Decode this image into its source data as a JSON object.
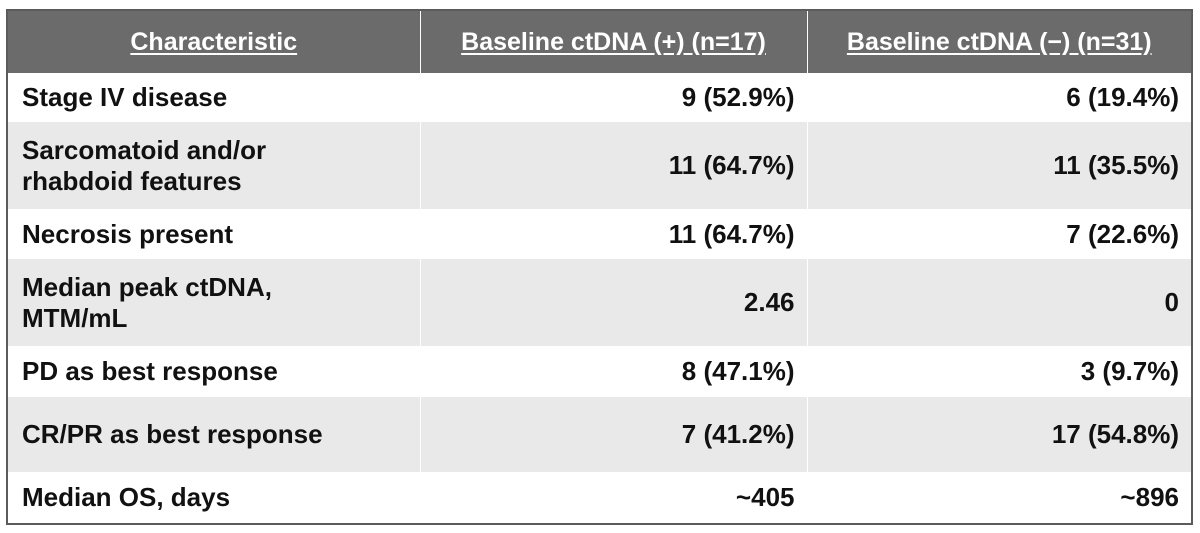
{
  "table": {
    "headers": [
      "Characteristic",
      "Baseline ctDNA (+) (n=17)",
      "Baseline ctDNA (−) (n=31)"
    ],
    "rows": [
      {
        "characteristic": "Stage IV disease",
        "positive": "9 (52.9%)",
        "negative": "6 (19.4%)"
      },
      {
        "characteristic": "Sarcomatoid and/or rhabdoid features",
        "positive": "11 (64.7%)",
        "negative": "11 (35.5%)"
      },
      {
        "characteristic": "Necrosis present",
        "positive": "11 (64.7%)",
        "negative": "7 (22.6%)"
      },
      {
        "characteristic": "Median peak ctDNA, MTM/mL",
        "positive": "2.46",
        "negative": "0"
      },
      {
        "characteristic": "PD as best response",
        "positive": "8 (47.1%)",
        "negative": "3 (9.7%)"
      },
      {
        "characteristic": "CR/PR as best response",
        "positive": "7 (41.2%)",
        "negative": "17 (54.8%)"
      },
      {
        "characteristic": "Median OS, days",
        "positive": "~405",
        "negative": "~896"
      }
    ]
  }
}
